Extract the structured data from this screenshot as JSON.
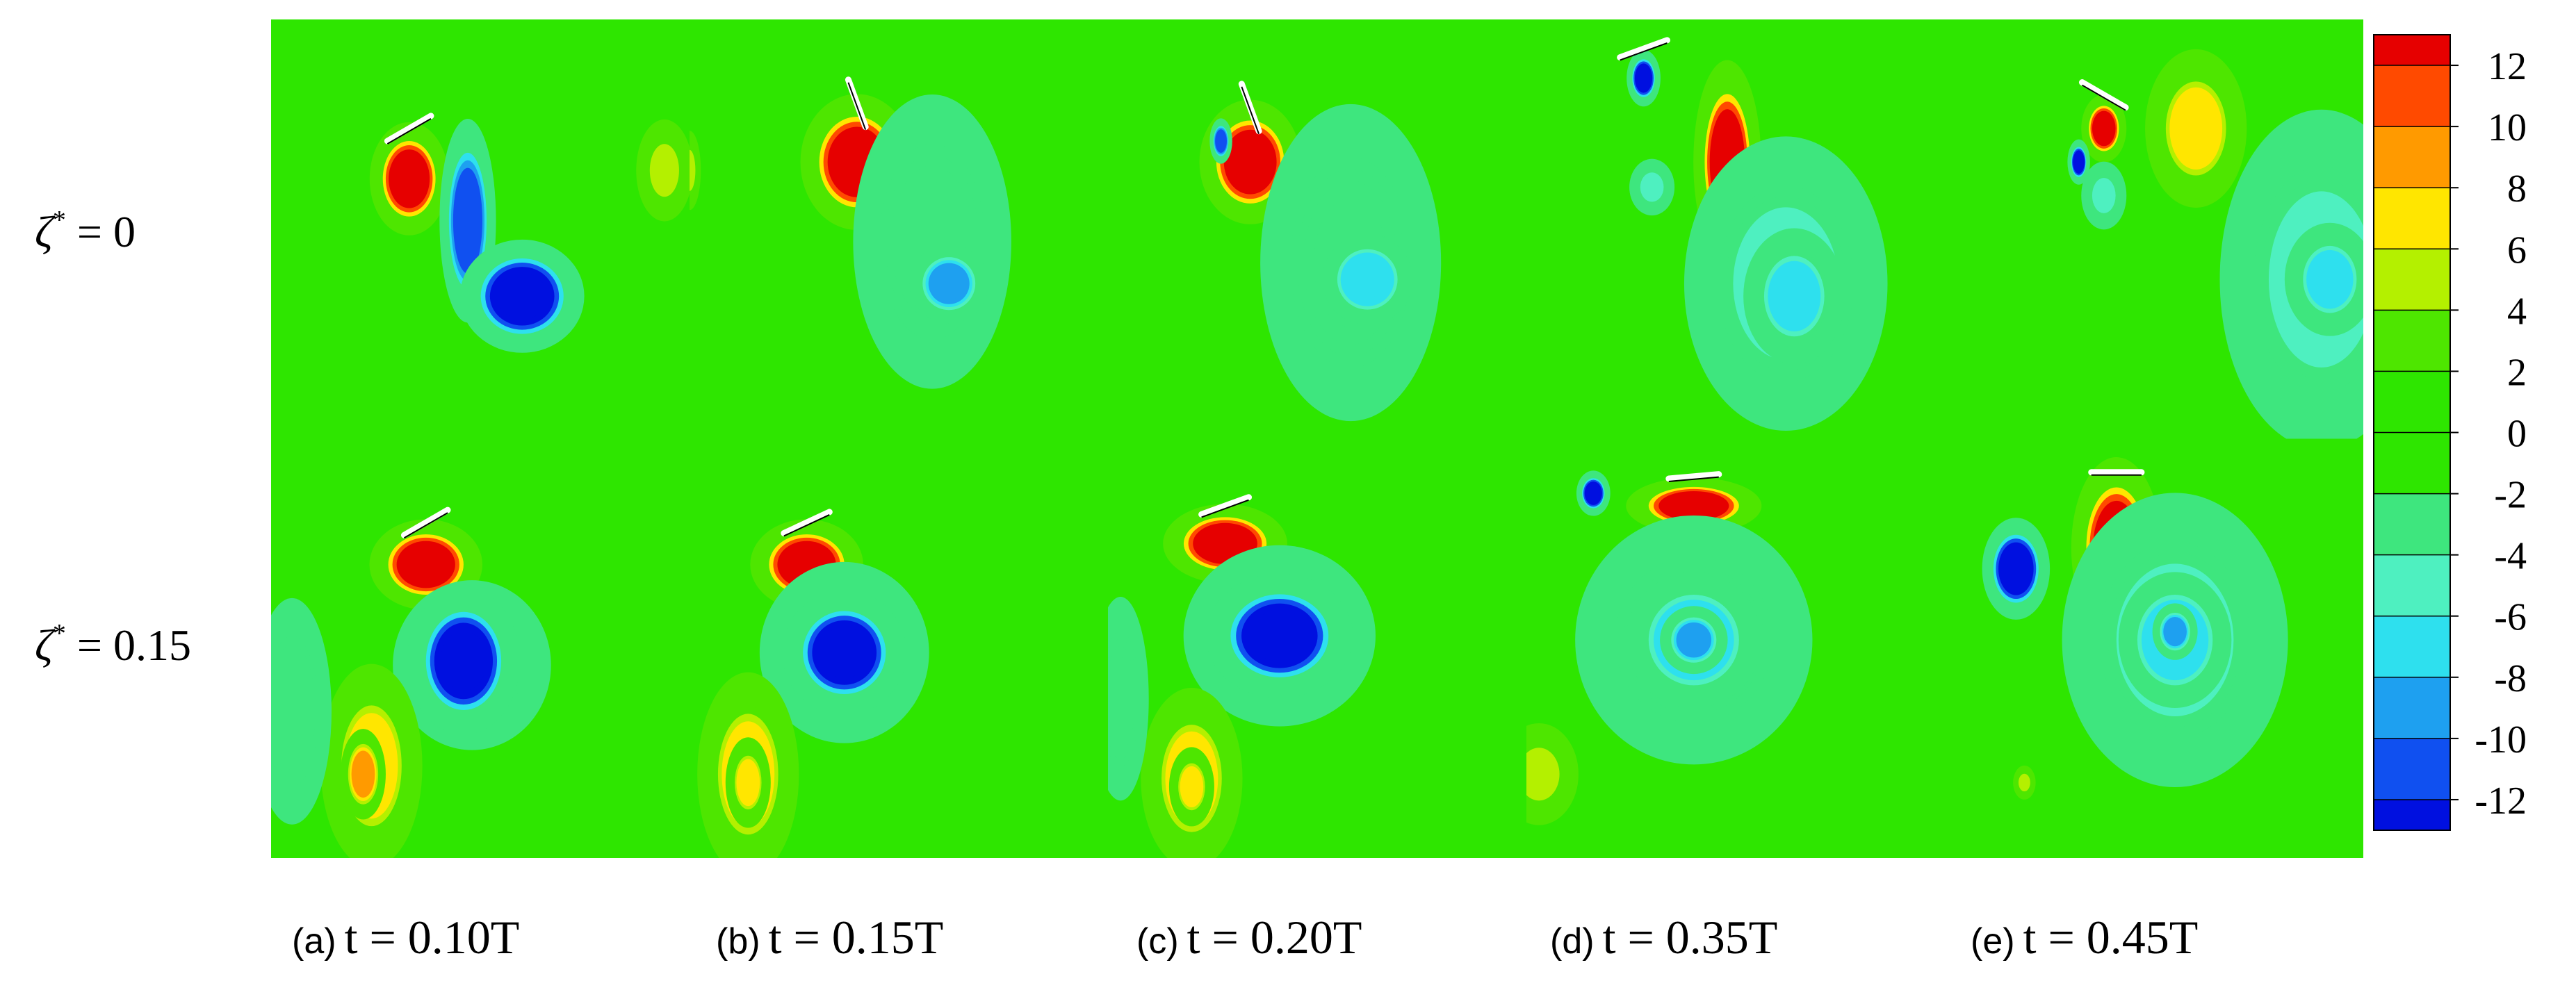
{
  "chart_data": {
    "type": "heatmap",
    "colorbar": {
      "ticks": [
        "12",
        "10",
        "8",
        "6",
        "4",
        "2",
        "0",
        "-2",
        "-4",
        "-6",
        "-8",
        "-10",
        "-12"
      ],
      "range": [
        -13,
        13
      ],
      "levels": [
        {
          "from": 12,
          "to": 13,
          "color": "#e60000"
        },
        {
          "from": 10,
          "to": 12,
          "color": "#ff4a00"
        },
        {
          "from": 8,
          "to": 10,
          "color": "#ff9a00"
        },
        {
          "from": 6,
          "to": 8,
          "color": "#ffe600"
        },
        {
          "from": 4,
          "to": 6,
          "color": "#b4f000"
        },
        {
          "from": 2,
          "to": 4,
          "color": "#4ee600"
        },
        {
          "from": 0,
          "to": 2,
          "color": "#2ee600"
        },
        {
          "from": -2,
          "to": 0,
          "color": "#2ee600"
        },
        {
          "from": -4,
          "to": -2,
          "color": "#3ee67e"
        },
        {
          "from": -6,
          "to": -4,
          "color": "#4ef0c0"
        },
        {
          "from": -8,
          "to": -6,
          "color": "#2ee0ee"
        },
        {
          "from": -10,
          "to": -8,
          "color": "#1ea0f0"
        },
        {
          "from": -12,
          "to": -10,
          "color": "#1050f0"
        },
        {
          "from": -13,
          "to": -12,
          "color": "#0010e0"
        }
      ]
    },
    "rows": [
      {
        "label_sym": "ζ",
        "label_sup": "*",
        "label_eq": " = 0"
      },
      {
        "label_sym": "ζ",
        "label_sup": "*",
        "label_eq": " = 0.15"
      }
    ],
    "columns": [
      {
        "tag": "(a)",
        "caption": "t = 0.10T"
      },
      {
        "tag": "(b)",
        "caption": "t = 0.15T"
      },
      {
        "tag": "(c)",
        "caption": "t = 0.20T"
      },
      {
        "tag": "(d)",
        "caption": "t = 0.35T"
      },
      {
        "tag": "(e)",
        "caption": "t = 0.45T"
      }
    ],
    "background_value": 1,
    "panels": [
      [
        {
          "plate_angle": 30,
          "vortices": [
            {
              "cx": 0.33,
              "cy": 0.38,
              "rx": 0.07,
              "ry": 0.1,
              "value": 13
            },
            {
              "cx": 0.47,
              "cy": 0.48,
              "rx": 0.05,
              "ry": 0.18,
              "value": -12
            },
            {
              "cx": 0.6,
              "cy": 0.66,
              "rx": 0.11,
              "ry": 0.1,
              "value": -13
            },
            {
              "cx": 0.94,
              "cy": 0.36,
              "rx": 0.05,
              "ry": 0.09,
              "value": 5
            }
          ]
        },
        {
          "plate_angle": -70,
          "vortices": [
            {
              "cx": 0.4,
              "cy": 0.34,
              "rx": 0.1,
              "ry": 0.12,
              "value": 13
            },
            {
              "cx": 0.58,
              "cy": 0.53,
              "rx": 0.14,
              "ry": 0.26,
              "value": -4
            },
            {
              "cx": 0.62,
              "cy": 0.63,
              "rx": 0.07,
              "ry": 0.07,
              "value": -9
            },
            {
              "cx": 0.0,
              "cy": 0.36,
              "rx": 0.02,
              "ry": 0.07,
              "value": 5
            }
          ]
        },
        {
          "plate_angle": -70,
          "vortices": [
            {
              "cx": 0.34,
              "cy": 0.34,
              "rx": 0.09,
              "ry": 0.11,
              "value": 13
            },
            {
              "cx": 0.27,
              "cy": 0.29,
              "rx": 0.02,
              "ry": 0.04,
              "value": -12
            },
            {
              "cx": 0.58,
              "cy": 0.58,
              "rx": 0.16,
              "ry": 0.28,
              "value": -4
            },
            {
              "cx": 0.62,
              "cy": 0.62,
              "rx": 0.08,
              "ry": 0.08,
              "value": -8
            }
          ]
        },
        {
          "plate_angle": 20,
          "vortices": [
            {
              "cx": 0.28,
              "cy": 0.14,
              "rx": 0.03,
              "ry": 0.05,
              "value": -13
            },
            {
              "cx": 0.3,
              "cy": 0.4,
              "rx": 0.04,
              "ry": 0.05,
              "value": -5
            },
            {
              "cx": 0.48,
              "cy": 0.34,
              "rx": 0.06,
              "ry": 0.18,
              "value": 13
            },
            {
              "cx": 0.62,
              "cy": 0.63,
              "rx": 0.18,
              "ry": 0.26,
              "value": -5
            },
            {
              "cx": 0.64,
              "cy": 0.66,
              "rx": 0.09,
              "ry": 0.12,
              "value": -7
            }
          ]
        },
        {
          "plate_angle": -30,
          "vortices": [
            {
              "cx": 0.38,
              "cy": 0.26,
              "rx": 0.04,
              "ry": 0.06,
              "value": 13
            },
            {
              "cx": 0.32,
              "cy": 0.34,
              "rx": 0.02,
              "ry": 0.04,
              "value": -13
            },
            {
              "cx": 0.6,
              "cy": 0.26,
              "rx": 0.09,
              "ry": 0.14,
              "value": 7
            },
            {
              "cx": 0.38,
              "cy": 0.42,
              "rx": 0.04,
              "ry": 0.06,
              "value": -5
            },
            {
              "cx": 0.9,
              "cy": 0.62,
              "rx": 0.18,
              "ry": 0.3,
              "value": -5
            },
            {
              "cx": 0.92,
              "cy": 0.62,
              "rx": 0.08,
              "ry": 0.1,
              "value": -7
            }
          ]
        }
      ],
      [
        {
          "plate_angle": 30,
          "vortices": [
            {
              "cx": 0.37,
              "cy": 0.3,
              "rx": 0.1,
              "ry": 0.08,
              "value": 13
            },
            {
              "cx": 0.48,
              "cy": 0.54,
              "rx": 0.14,
              "ry": 0.15,
              "value": -4
            },
            {
              "cx": 0.46,
              "cy": 0.53,
              "rx": 0.1,
              "ry": 0.13,
              "value": -13
            },
            {
              "cx": 0.24,
              "cy": 0.78,
              "rx": 0.09,
              "ry": 0.18,
              "value": 6
            },
            {
              "cx": 0.22,
              "cy": 0.8,
              "rx": 0.04,
              "ry": 0.08,
              "value": 9
            },
            {
              "cx": 0.05,
              "cy": 0.65,
              "rx": 0.07,
              "ry": 0.2,
              "value": -3
            }
          ]
        },
        {
          "plate_angle": 25,
          "vortices": [
            {
              "cx": 0.28,
              "cy": 0.3,
              "rx": 0.1,
              "ry": 0.08,
              "value": 13
            },
            {
              "cx": 0.37,
              "cy": 0.51,
              "rx": 0.15,
              "ry": 0.16,
              "value": -5
            },
            {
              "cx": 0.37,
              "cy": 0.51,
              "rx": 0.11,
              "ry": 0.11,
              "value": -13
            },
            {
              "cx": 0.14,
              "cy": 0.8,
              "rx": 0.09,
              "ry": 0.18,
              "value": 6
            },
            {
              "cx": 0.14,
              "cy": 0.82,
              "rx": 0.04,
              "ry": 0.08,
              "value": 7
            }
          ]
        },
        {
          "plate_angle": 20,
          "vortices": [
            {
              "cx": 0.28,
              "cy": 0.25,
              "rx": 0.11,
              "ry": 0.07,
              "value": 13
            },
            {
              "cx": 0.41,
              "cy": 0.47,
              "rx": 0.17,
              "ry": 0.16,
              "value": -5
            },
            {
              "cx": 0.41,
              "cy": 0.47,
              "rx": 0.13,
              "ry": 0.11,
              "value": -13
            },
            {
              "cx": 0.2,
              "cy": 0.81,
              "rx": 0.09,
              "ry": 0.16,
              "value": 6
            },
            {
              "cx": 0.2,
              "cy": 0.83,
              "rx": 0.04,
              "ry": 0.07,
              "value": 7
            },
            {
              "cx": 0.03,
              "cy": 0.62,
              "rx": 0.05,
              "ry": 0.18,
              "value": -3
            }
          ]
        },
        {
          "plate_angle": 5,
          "vortices": [
            {
              "cx": 0.4,
              "cy": 0.16,
              "rx": 0.12,
              "ry": 0.05,
              "value": 13
            },
            {
              "cx": 0.16,
              "cy": 0.13,
              "rx": 0.03,
              "ry": 0.04,
              "value": -13
            },
            {
              "cx": 0.4,
              "cy": 0.48,
              "rx": 0.21,
              "ry": 0.22,
              "value": -5
            },
            {
              "cx": 0.4,
              "cy": 0.48,
              "rx": 0.12,
              "ry": 0.12,
              "value": -8
            },
            {
              "cx": 0.4,
              "cy": 0.48,
              "rx": 0.06,
              "ry": 0.06,
              "value": -9
            },
            {
              "cx": 0.03,
              "cy": 0.8,
              "rx": 0.07,
              "ry": 0.09,
              "value": 5
            }
          ]
        },
        {
          "plate_angle": 0,
          "vortices": [
            {
              "cx": 0.41,
              "cy": 0.26,
              "rx": 0.08,
              "ry": 0.16,
              "value": 13
            },
            {
              "cx": 0.17,
              "cy": 0.31,
              "rx": 0.06,
              "ry": 0.09,
              "value": -13
            },
            {
              "cx": 0.55,
              "cy": 0.48,
              "rx": 0.2,
              "ry": 0.26,
              "value": -5
            },
            {
              "cx": 0.55,
              "cy": 0.48,
              "rx": 0.1,
              "ry": 0.12,
              "value": -8
            },
            {
              "cx": 0.55,
              "cy": 0.46,
              "rx": 0.04,
              "ry": 0.05,
              "value": -9
            },
            {
              "cx": 0.19,
              "cy": 0.82,
              "rx": 0.02,
              "ry": 0.03,
              "value": 5
            }
          ]
        }
      ]
    ]
  }
}
